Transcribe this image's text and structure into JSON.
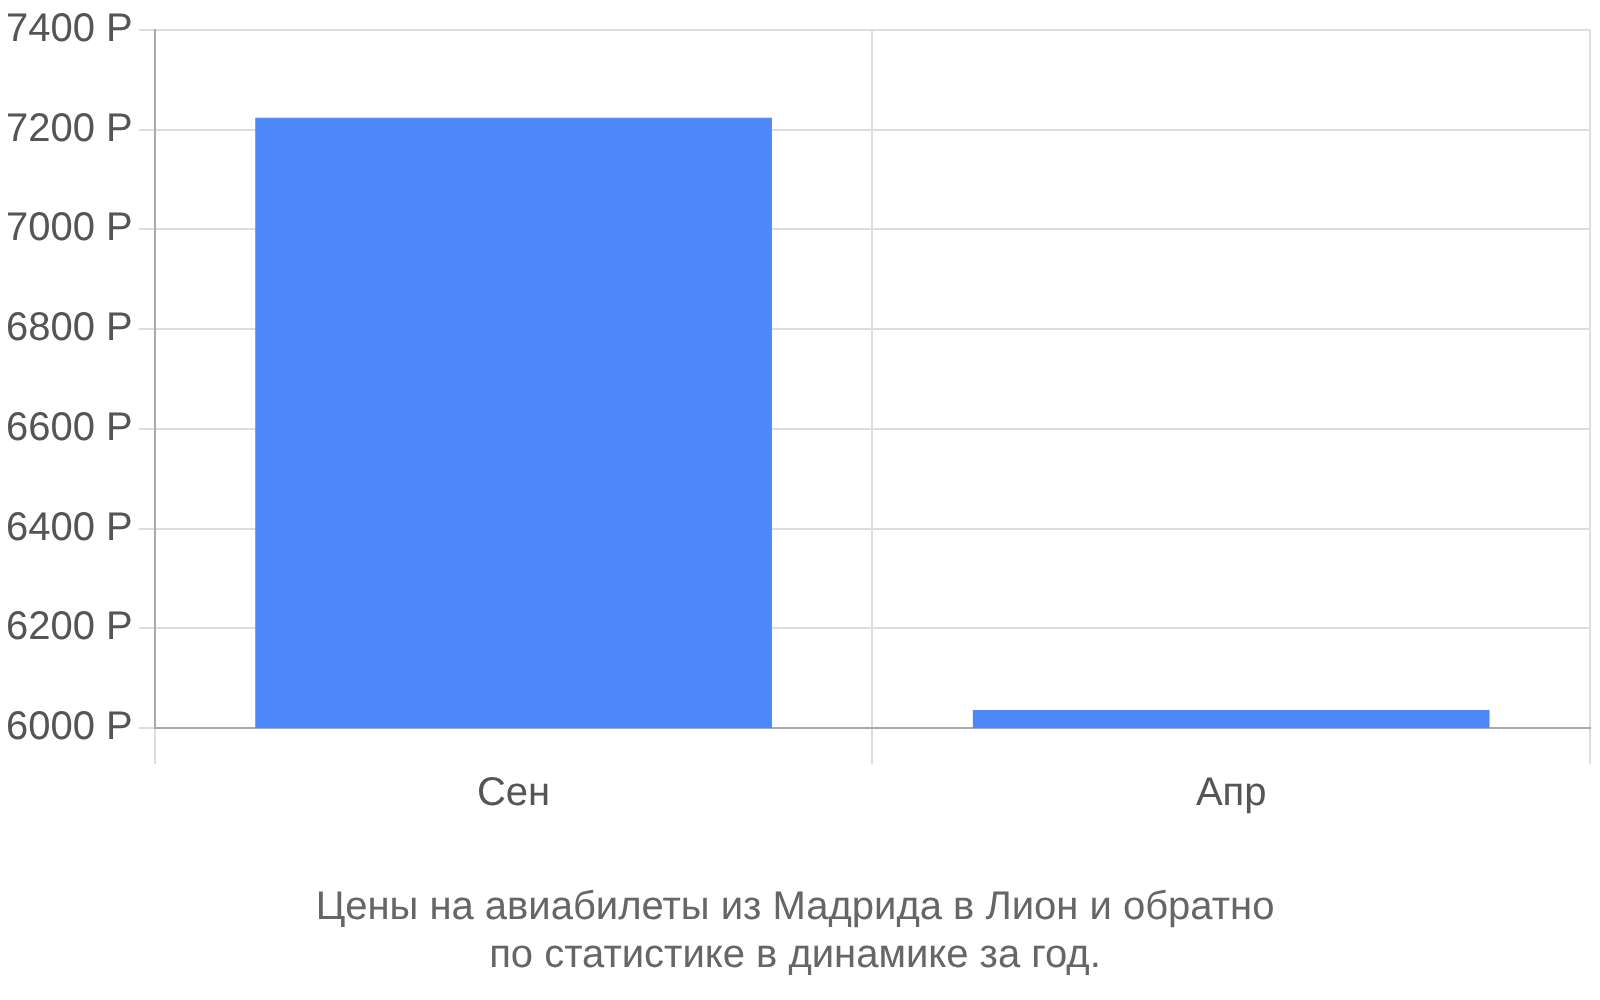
{
  "chart_data": {
    "type": "bar",
    "title": "Цены на авиабилеты из Мадрида в Лион и обратно\nпо статистике в динамике за год.",
    "categories": [
      "Сен",
      "Апр"
    ],
    "values": [
      7224,
      6036
    ],
    "color": "#4d88f9",
    "ylim": [
      6000,
      7400
    ],
    "yticks": [
      {
        "value": 6000,
        "label": "6000 Р"
      },
      {
        "value": 6200,
        "label": "6200 Р"
      },
      {
        "value": 6400,
        "label": "6400 Р"
      },
      {
        "value": 6600,
        "label": "6600 Р"
      },
      {
        "value": 6800,
        "label": "6800 Р"
      },
      {
        "value": 7000,
        "label": "7000 Р"
      },
      {
        "value": 7200,
        "label": "7200 Р"
      },
      {
        "value": 7400,
        "label": "7400 Р"
      }
    ],
    "grid": true
  }
}
